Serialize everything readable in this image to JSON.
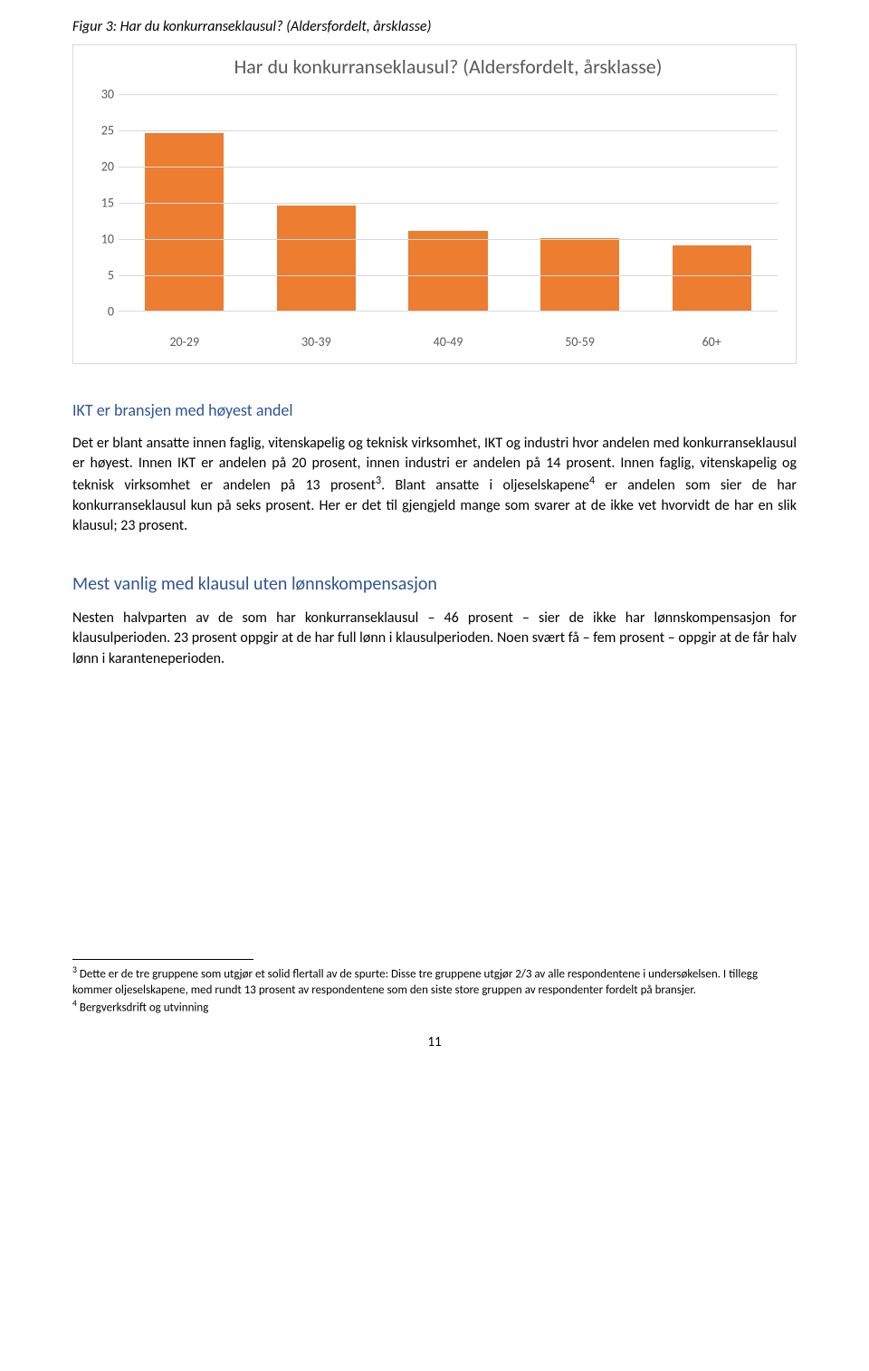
{
  "figure": {
    "caption": "Figur 3: Har du konkurranseklausul? (Aldersfordelt, årsklasse)",
    "chart": {
      "type": "bar",
      "title": "Har du konkurranseklausul? (Aldersfordelt, årsklasse)",
      "categories": [
        "20-29",
        "30-39",
        "40-49",
        "50-59",
        "60+"
      ],
      "values": [
        24.5,
        14.5,
        11,
        10,
        9
      ],
      "ylim": [
        0,
        30
      ],
      "ytick_step": 5,
      "yticks": [
        {
          "value": 30,
          "label": "30"
        },
        {
          "value": 25,
          "label": "25"
        },
        {
          "value": 20,
          "label": "20"
        },
        {
          "value": 15,
          "label": "15"
        },
        {
          "value": 10,
          "label": "10"
        },
        {
          "value": 5,
          "label": "5"
        },
        {
          "value": 0,
          "label": "0"
        }
      ],
      "bar_color": "#ed7d31",
      "grid_color": "#d9d9d9",
      "background_color": "#ffffff",
      "axis_label_color": "#595959",
      "title_fontsize": 22,
      "label_fontsize": 14,
      "bar_width": 0.6
    }
  },
  "section1": {
    "heading": "IKT er bransjen med høyest andel",
    "paragraph_a": "Det er blant ansatte innen faglig, vitenskapelig og teknisk virksomhet, IKT og industri hvor andelen med konkurranseklausul er høyest. Innen IKT er andelen på 20 prosent, innen industri er andelen på 14 prosent. Innen faglig, vitenskapelig og teknisk virksomhet er andelen på 13 prosent",
    "paragraph_b": ". Blant ansatte i oljeselskapene",
    "paragraph_c": " er andelen som sier de har konkurranseklausul kun på seks prosent. Her er det til gjengjeld mange som svarer at de ikke vet hvorvidt de har en slik klausul; 23 prosent."
  },
  "section2": {
    "heading": "Mest vanlig med klausul uten lønnskompensasjon",
    "paragraph": "Nesten halvparten av de som har konkurranseklausul – 46 prosent – sier de ikke har lønnskompensasjon for klausulperioden. 23 prosent oppgir at de har full lønn i klausulperioden. Noen svært få – fem prosent – oppgir at de får halv lønn i karanteneperioden."
  },
  "footnotes": {
    "note3_a": " Dette er de tre gruppene som utgjør et solid flertall av de spurte: Disse tre gruppene utgjør 2/3 av alle respondentene i undersøkelsen. I tillegg kommer oljeselskapene, med rundt 13 prosent av respondentene som den siste store gruppen av respondenter fordelt på bransjer.",
    "note4": " Bergverksdrift og utvinning",
    "sup3": "3",
    "sup4": "4"
  },
  "page_number": "11"
}
